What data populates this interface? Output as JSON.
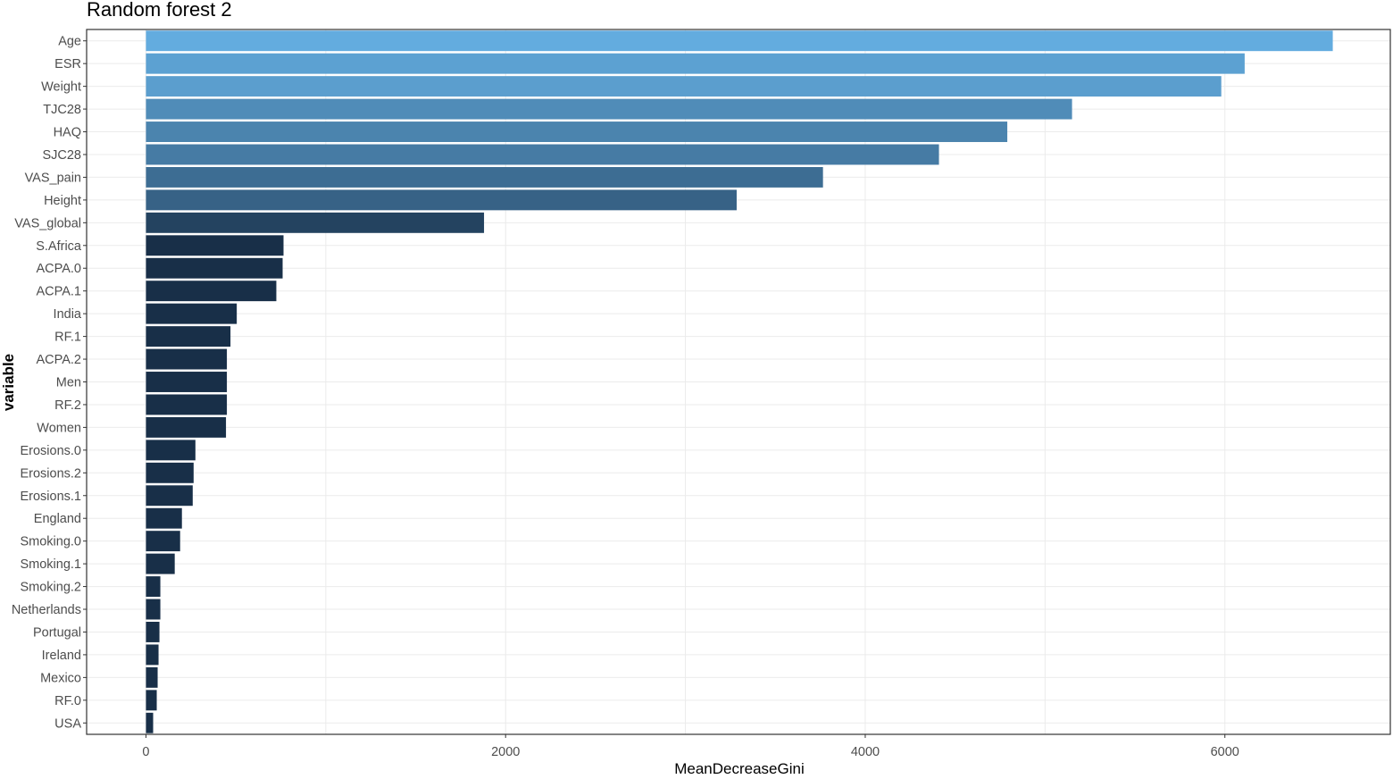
{
  "chart_data": {
    "type": "bar",
    "orientation": "horizontal",
    "title": "Random forest 2",
    "xlabel": "MeanDecreaseGini",
    "ylabel": "variable",
    "xlim": [
      -330,
      6920
    ],
    "xticks": [
      0,
      2000,
      4000,
      6000
    ],
    "grid": true,
    "legend": "none",
    "colors": {
      "high": "#63acdf",
      "low": "#182f48",
      "panel_border": "#333333",
      "grid": "#ebebeb"
    },
    "categories": [
      "Age",
      "ESR",
      "Weight",
      "TJC28",
      "HAQ",
      "SJC28",
      "VAS_pain",
      "Height",
      "VAS_global",
      "S.Africa",
      "ACPA.0",
      "ACPA.1",
      "India",
      "RF.1",
      "ACPA.2",
      "Men",
      "RF.2",
      "Women",
      "Erosions.0",
      "Erosions.2",
      "Erosions.1",
      "England",
      "Smoking.0",
      "Smoking.1",
      "Smoking.2",
      "Netherlands",
      "Portugal",
      "Ireland",
      "Mexico",
      "RF.0",
      "USA"
    ],
    "values": [
      6600,
      6110,
      5980,
      5150,
      4790,
      4410,
      3765,
      3285,
      1880,
      765,
      760,
      725,
      505,
      470,
      450,
      450,
      450,
      445,
      275,
      265,
      260,
      200,
      190,
      160,
      80,
      80,
      75,
      70,
      65,
      60,
      40
    ]
  }
}
